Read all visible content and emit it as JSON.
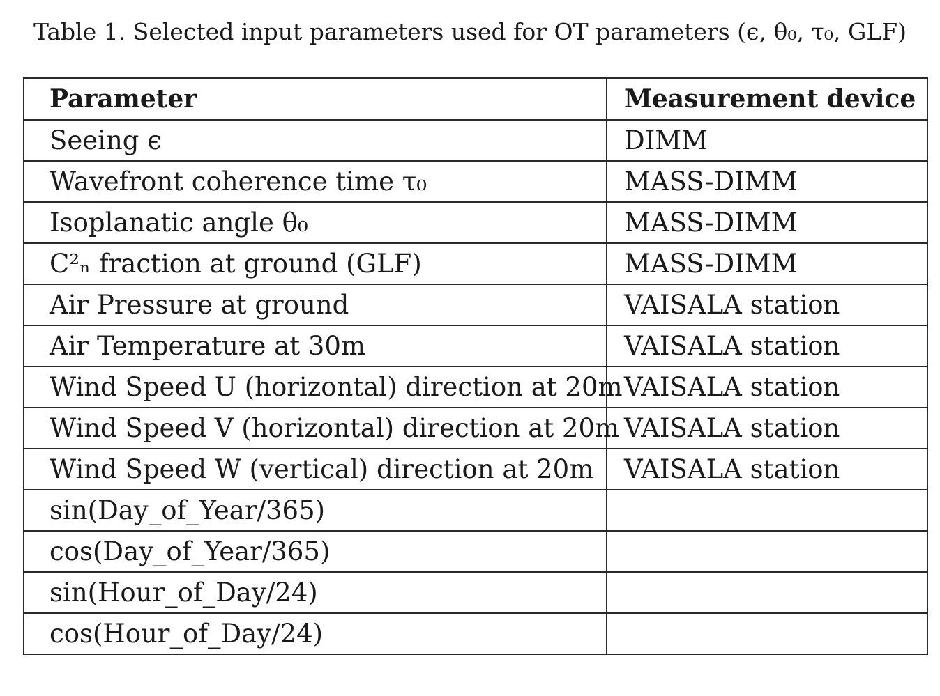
{
  "caption": "Table 1. Selected input parameters used for OT parameters (ϵ, θ₀, τ₀, GLF)",
  "table": {
    "headers": [
      "Parameter",
      "Measurement device"
    ],
    "rows": [
      {
        "parameter": "Seeing ϵ",
        "device": "DIMM"
      },
      {
        "parameter": "Wavefront coherence time τ₀",
        "device": "MASS-DIMM"
      },
      {
        "parameter": "Isoplanatic angle θ₀",
        "device": "MASS-DIMM"
      },
      {
        "parameter": "C²ₙ fraction at ground (GLF)",
        "device": "MASS-DIMM"
      },
      {
        "parameter": "Air Pressure at ground",
        "device": "VAISALA station"
      },
      {
        "parameter": "Air Temperature at 30m",
        "device": "VAISALA station"
      },
      {
        "parameter": "Wind Speed U (horizontal) direction at 20m",
        "device": "VAISALA station"
      },
      {
        "parameter": "Wind Speed V (horizontal) direction at 20m",
        "device": "VAISALA station"
      },
      {
        "parameter": "Wind Speed W (vertical) direction at 20m",
        "device": "VAISALA station"
      },
      {
        "parameter": "sin(Day_of_Year/365)",
        "device": ""
      },
      {
        "parameter": "cos(Day_of_Year/365)",
        "device": ""
      },
      {
        "parameter": "sin(Hour_of_Day/24)",
        "device": ""
      },
      {
        "parameter": "cos(Hour_of_Day/24)",
        "device": ""
      }
    ]
  }
}
